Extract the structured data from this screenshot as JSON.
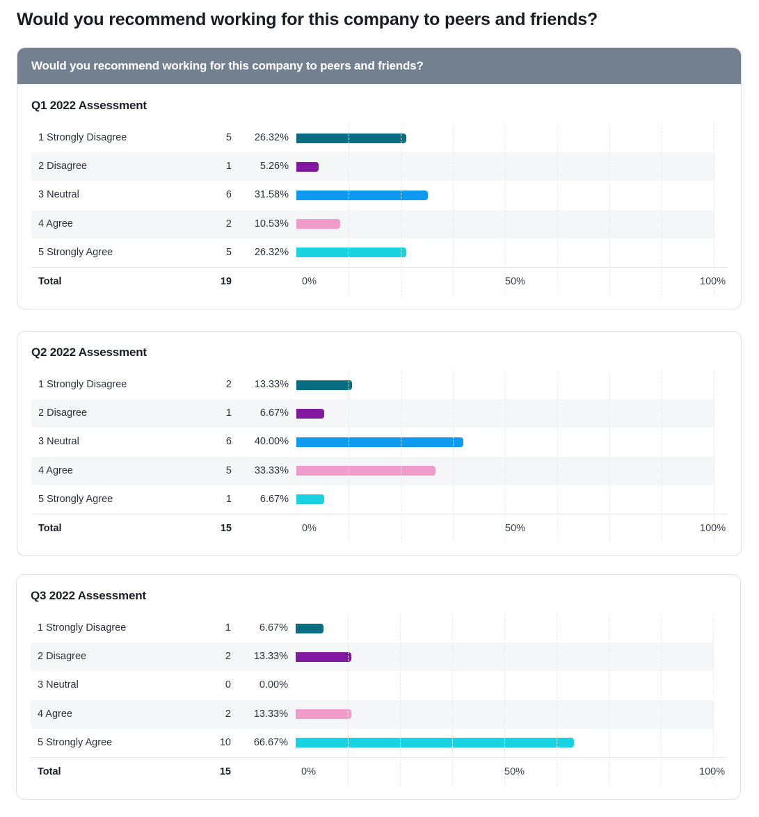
{
  "page": {
    "title": "Would you recommend working for this company to peers and friends?"
  },
  "card_header": "Would you recommend working for this company to peers and friends?",
  "total_label": "Total",
  "axis_ticks": [
    "0%",
    "50%",
    "100%"
  ],
  "colors": {
    "header_bg": "#72808f",
    "series": [
      "#0a6e82",
      "#8019a0",
      "#0d9af0",
      "#ef9ccb",
      "#19d3e0"
    ],
    "row_shade": "#f5f6f8"
  },
  "chart_data": [
    {
      "type": "bar",
      "title": "Q1 2022 Assessment",
      "categories": [
        "1 Strongly Disagree",
        "2 Disagree",
        "3 Neutral",
        "4 Agree",
        "5 Strongly Agree"
      ],
      "counts": [
        5,
        1,
        6,
        2,
        5
      ],
      "percent_labels": [
        "26.32%",
        "5.26%",
        "31.58%",
        "10.53%",
        "26.32%"
      ],
      "values": [
        26.32,
        5.26,
        31.58,
        10.53,
        26.32
      ],
      "total": 19,
      "xlim": [
        0,
        100
      ]
    },
    {
      "type": "bar",
      "title": "Q2 2022 Assessment",
      "categories": [
        "1 Strongly Disagree",
        "2 Disagree",
        "3 Neutral",
        "4 Agree",
        "5 Strongly Agree"
      ],
      "counts": [
        2,
        1,
        6,
        5,
        1
      ],
      "percent_labels": [
        "13.33%",
        "6.67%",
        "40.00%",
        "33.33%",
        "6.67%"
      ],
      "values": [
        13.33,
        6.67,
        40.0,
        33.33,
        6.67
      ],
      "total": 15,
      "xlim": [
        0,
        100
      ]
    },
    {
      "type": "bar",
      "title": "Q3 2022 Assessment",
      "categories": [
        "1 Strongly Disagree",
        "2 Disagree",
        "3 Neutral",
        "4 Agree",
        "5 Strongly Agree"
      ],
      "counts": [
        1,
        2,
        0,
        2,
        10
      ],
      "percent_labels": [
        "6.67%",
        "13.33%",
        "0.00%",
        "13.33%",
        "66.67%"
      ],
      "values": [
        6.67,
        13.33,
        0.0,
        13.33,
        66.67
      ],
      "total": 15,
      "xlim": [
        0,
        100
      ]
    }
  ]
}
